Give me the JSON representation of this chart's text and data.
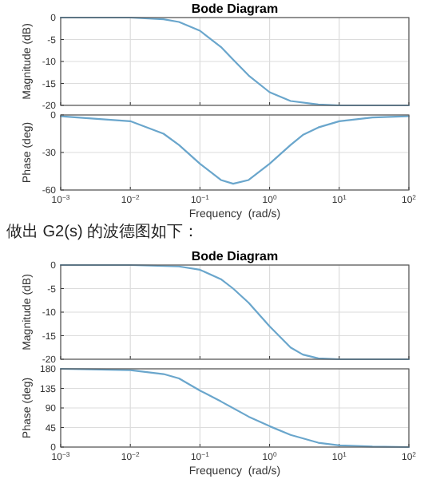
{
  "chart_data": [
    {
      "type": "line",
      "title": "Bode Diagram",
      "ylabel": "Magnitude (dB)",
      "log": "x",
      "grid": true,
      "tick_labels": "y",
      "x": [
        0.001,
        0.01,
        0.03,
        0.05,
        0.1,
        0.2,
        0.3,
        0.5,
        1,
        2,
        5,
        10,
        100
      ],
      "series": [
        {
          "color": "#6aa6cc",
          "values": [
            0,
            0,
            -0.4,
            -1,
            -3,
            -6.7,
            -9.6,
            -13.2,
            -17,
            -19,
            -19.8,
            -20,
            -20
          ]
        }
      ],
      "xlim": [
        0.001,
        100
      ],
      "xticks": [
        {
          "value": 0.001,
          "label": null
        },
        {
          "value": 0.01,
          "label": null
        },
        {
          "value": 0.1,
          "label": null
        },
        {
          "value": 1,
          "label": null
        },
        {
          "value": 10,
          "label": null
        },
        {
          "value": 100,
          "label": null
        }
      ],
      "ylim": [
        -20,
        0
      ],
      "yticks": [
        -20,
        -15,
        -10,
        -5,
        0
      ]
    },
    {
      "type": "line",
      "ylabel": "Phase (deg)",
      "xlabel": "Frequency  (rad/s)",
      "log": "x",
      "grid": true,
      "x": [
        0.001,
        0.01,
        0.03,
        0.05,
        0.1,
        0.2,
        0.3,
        0.5,
        1,
        2,
        3,
        5,
        10,
        30,
        100
      ],
      "series": [
        {
          "color": "#6aa6cc",
          "values": [
            -1,
            -5,
            -15,
            -24,
            -39,
            -52,
            -55,
            -52,
            -39,
            -24,
            -16,
            -10,
            -5,
            -2,
            -1
          ]
        }
      ],
      "xlim": [
        0.001,
        100
      ],
      "xticks": [
        {
          "value": 0.001,
          "label": "10$^{−3}$"
        },
        {
          "value": 0.01,
          "label": "10$^{−2}$"
        },
        {
          "value": 0.1,
          "label": "10$^{−1}$"
        },
        {
          "value": 1,
          "label": "10$^{0}$"
        },
        {
          "value": 10,
          "label": "10$^{1}$"
        },
        {
          "value": 100,
          "label": "10$^{2}$"
        }
      ],
      "ylim": [
        -60,
        0
      ],
      "yticks": [
        -60,
        -30,
        0
      ]
    },
    {
      "type": "line",
      "title": "Bode Diagram",
      "ylabel": "Magnitude (dB)",
      "log": "x",
      "grid": true,
      "tick_labels": "y",
      "annotations": [
        "做出 G2(s) 的波德图如下："
      ],
      "x": [
        0.001,
        0.01,
        0.05,
        0.1,
        0.2,
        0.3,
        0.5,
        1,
        2,
        3,
        5,
        10,
        100
      ],
      "series": [
        {
          "color": "#6aa6cc",
          "values": [
            0,
            0,
            -0.3,
            -1,
            -3,
            -5,
            -8,
            -13,
            -17.5,
            -19,
            -19.8,
            -20,
            -20
          ]
        }
      ],
      "xlim": [
        0.001,
        100
      ],
      "xticks": [
        {
          "value": 0.001,
          "label": null
        },
        {
          "value": 0.01,
          "label": null
        },
        {
          "value": 0.1,
          "label": null
        },
        {
          "value": 1,
          "label": null
        },
        {
          "value": 10,
          "label": null
        },
        {
          "value": 100,
          "label": null
        }
      ],
      "ylim": [
        -20,
        0
      ],
      "yticks": [
        -20,
        -15,
        -10,
        -5,
        0
      ]
    },
    {
      "type": "line",
      "ylabel": "Phase (deg)",
      "xlabel": "Frequency  (rad/s)",
      "log": "x",
      "grid": true,
      "x": [
        0.001,
        0.01,
        0.03,
        0.05,
        0.1,
        0.2,
        0.5,
        1,
        2,
        5,
        10,
        30,
        100
      ],
      "series": [
        {
          "color": "#6aa6cc",
          "values": [
            180,
            177,
            168,
            158,
            130,
            105,
            70,
            48,
            28,
            10,
            4,
            1,
            0
          ]
        }
      ],
      "xlim": [
        0.001,
        100
      ],
      "xticks": [
        {
          "value": 0.001,
          "label": "10$^{−3}$"
        },
        {
          "value": 0.01,
          "label": "10$^{−2}$"
        },
        {
          "value": 0.1,
          "label": "10$^{−1}$"
        },
        {
          "value": 1,
          "label": "10$^{0}$"
        },
        {
          "value": 10,
          "label": "10$^{1}$"
        },
        {
          "value": 100,
          "label": "10$^{2}$"
        }
      ],
      "ylim": [
        0,
        180
      ],
      "yticks": [
        0,
        45,
        90,
        135,
        180
      ]
    }
  ]
}
